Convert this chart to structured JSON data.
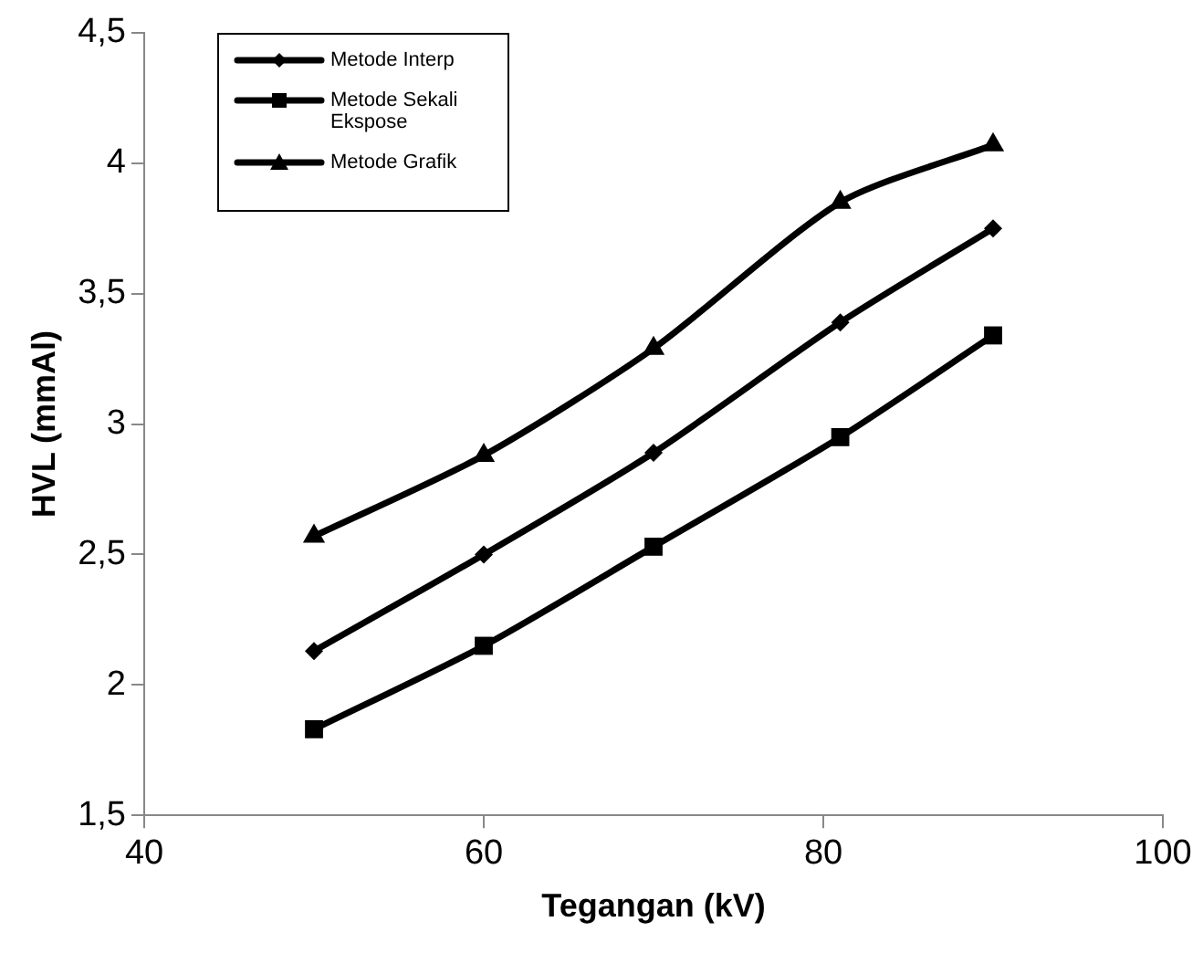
{
  "chart_data": {
    "type": "line",
    "xlabel": "Tegangan (kV)",
    "ylabel": "HVL (mmAl)",
    "x": [
      50,
      60,
      70,
      81,
      90
    ],
    "series": [
      {
        "name": "Metode Interp",
        "color": "#000000",
        "marker": "diamond",
        "values": [
          2.13,
          2.5,
          2.89,
          3.39,
          3.75
        ]
      },
      {
        "name": "Metode Sekali Ekspose",
        "color": "#000000",
        "marker": "square",
        "values": [
          1.83,
          2.15,
          2.53,
          2.95,
          3.34
        ]
      },
      {
        "name": "Metode Grafik",
        "color": "#000000",
        "marker": "triangle",
        "values": [
          2.57,
          2.88,
          3.29,
          3.85,
          4.07
        ]
      }
    ],
    "xlim": [
      40,
      100
    ],
    "xticks": [
      40,
      60,
      80,
      100
    ],
    "ylim": [
      1.5,
      4.5
    ],
    "yticks": [
      {
        "value": 1.5,
        "label": "1,5"
      },
      2,
      {
        "value": 2.5,
        "label": "2,5"
      },
      3,
      {
        "value": 3.5,
        "label": "3,5"
      },
      4,
      {
        "value": 4.5,
        "label": "4,5"
      }
    ],
    "grid": false,
    "legend": "top left",
    "line_style": "solid"
  }
}
